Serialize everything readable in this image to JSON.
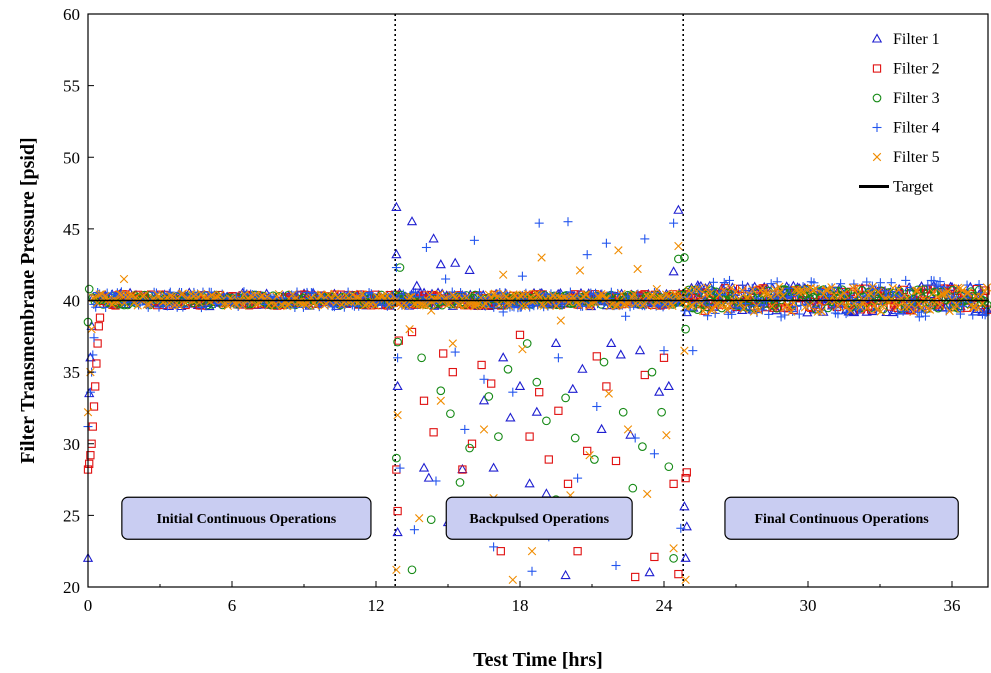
{
  "chart_data": {
    "type": "scatter",
    "title": "",
    "xlabel": "Test Time [hrs]",
    "ylabel": "Filter Transmembrane Pressure [psid]",
    "xlim": [
      0,
      37.5
    ],
    "ylim": [
      20,
      60
    ],
    "x_ticks": [
      "0",
      "6",
      "12",
      "18",
      "24",
      "30",
      "36"
    ],
    "x_tick_values": [
      0,
      6,
      12,
      18,
      24,
      30,
      36
    ],
    "y_ticks": [
      "20",
      "25",
      "30",
      "35",
      "40",
      "45",
      "50",
      "55",
      "60"
    ],
    "y_tick_values": [
      20,
      25,
      30,
      35,
      40,
      45,
      50,
      55,
      60
    ],
    "grid": false,
    "legend_position": "top-right",
    "phase_boundaries": [
      12.8,
      24.8
    ],
    "target": 40,
    "legend_target_label": "Target",
    "annotations": [
      {
        "text": "Initial Continuous Operations",
        "x": 6.6,
        "y": 24.8
      },
      {
        "text": "Backpulsed Operations",
        "x": 18.8,
        "y": 24.8
      },
      {
        "text": "Final Continuous Operations",
        "x": 31.4,
        "y": 24.8
      }
    ],
    "series": [
      {
        "name": "Filter 1",
        "marker": "triangle",
        "color": "#1f1fd0",
        "points": [
          [
            0.0,
            22.0
          ],
          [
            0.05,
            33.5
          ],
          [
            0.1,
            36.0
          ],
          [
            0.15,
            38.2
          ],
          [
            12.85,
            46.5
          ],
          [
            12.85,
            43.2
          ],
          [
            12.9,
            34.0
          ],
          [
            12.9,
            23.8
          ],
          [
            13.5,
            45.5
          ],
          [
            13.7,
            41.0
          ],
          [
            14.0,
            28.3
          ],
          [
            14.2,
            27.6
          ],
          [
            14.4,
            44.3
          ],
          [
            14.7,
            42.5
          ],
          [
            15.0,
            24.5
          ],
          [
            15.3,
            42.6
          ],
          [
            15.6,
            28.2
          ],
          [
            15.9,
            42.1
          ],
          [
            16.2,
            25.3
          ],
          [
            16.5,
            33.0
          ],
          [
            16.9,
            28.3
          ],
          [
            17.3,
            36.0
          ],
          [
            17.6,
            31.8
          ],
          [
            18.0,
            34.0
          ],
          [
            18.4,
            27.2
          ],
          [
            18.7,
            32.2
          ],
          [
            19.1,
            26.5
          ],
          [
            19.5,
            37.0
          ],
          [
            19.9,
            20.8
          ],
          [
            20.2,
            33.8
          ],
          [
            20.6,
            35.2
          ],
          [
            21.0,
            25.4
          ],
          [
            21.4,
            31.0
          ],
          [
            21.8,
            37.0
          ],
          [
            22.2,
            36.2
          ],
          [
            22.6,
            30.6
          ],
          [
            23.0,
            36.5
          ],
          [
            23.4,
            21.0
          ],
          [
            23.8,
            33.6
          ],
          [
            24.2,
            34.0
          ],
          [
            24.4,
            42.0
          ],
          [
            24.6,
            46.3
          ],
          [
            24.85,
            25.6
          ],
          [
            24.9,
            22.0
          ],
          [
            24.95,
            24.2
          ]
        ]
      },
      {
        "name": "Filter 2",
        "marker": "square",
        "color": "#e01010",
        "points": [
          [
            0.0,
            28.2
          ],
          [
            0.05,
            28.6
          ],
          [
            0.1,
            29.2
          ],
          [
            0.15,
            30.0
          ],
          [
            0.2,
            31.2
          ],
          [
            0.25,
            32.6
          ],
          [
            0.3,
            34.0
          ],
          [
            0.35,
            35.6
          ],
          [
            0.4,
            37.0
          ],
          [
            0.45,
            38.2
          ],
          [
            0.5,
            38.8
          ],
          [
            12.85,
            28.2
          ],
          [
            12.9,
            25.3
          ],
          [
            12.95,
            37.2
          ],
          [
            13.5,
            37.8
          ],
          [
            14.0,
            33.0
          ],
          [
            14.4,
            30.8
          ],
          [
            14.8,
            36.3
          ],
          [
            15.2,
            35.0
          ],
          [
            15.6,
            28.2
          ],
          [
            16.0,
            30.0
          ],
          [
            16.4,
            35.5
          ],
          [
            16.8,
            34.2
          ],
          [
            17.2,
            22.5
          ],
          [
            17.6,
            24.4
          ],
          [
            18.0,
            37.6
          ],
          [
            18.4,
            30.5
          ],
          [
            18.8,
            33.6
          ],
          [
            19.2,
            28.9
          ],
          [
            19.6,
            32.3
          ],
          [
            20.0,
            27.2
          ],
          [
            20.4,
            22.5
          ],
          [
            20.8,
            29.5
          ],
          [
            21.2,
            36.1
          ],
          [
            21.6,
            34.0
          ],
          [
            22.0,
            28.8
          ],
          [
            22.4,
            25.0
          ],
          [
            22.8,
            20.7
          ],
          [
            23.2,
            34.8
          ],
          [
            23.6,
            22.1
          ],
          [
            24.0,
            36.0
          ],
          [
            24.4,
            27.2
          ],
          [
            24.6,
            20.9
          ],
          [
            24.9,
            27.6
          ],
          [
            24.95,
            28.0
          ]
        ]
      },
      {
        "name": "Filter 3",
        "marker": "circle",
        "color": "#168a16",
        "points": [
          [
            0.0,
            38.5
          ],
          [
            0.05,
            40.8
          ],
          [
            12.85,
            29.0
          ],
          [
            12.9,
            37.1
          ],
          [
            13.0,
            42.3
          ],
          [
            13.5,
            21.2
          ],
          [
            13.9,
            36.0
          ],
          [
            14.3,
            24.7
          ],
          [
            14.7,
            33.7
          ],
          [
            15.1,
            32.1
          ],
          [
            15.5,
            27.3
          ],
          [
            15.9,
            29.7
          ],
          [
            16.3,
            25.1
          ],
          [
            16.7,
            33.3
          ],
          [
            17.1,
            30.5
          ],
          [
            17.5,
            35.2
          ],
          [
            17.9,
            25.0
          ],
          [
            18.3,
            37.0
          ],
          [
            18.7,
            34.3
          ],
          [
            19.1,
            31.6
          ],
          [
            19.5,
            26.1
          ],
          [
            19.9,
            33.2
          ],
          [
            20.3,
            30.4
          ],
          [
            20.7,
            24.6
          ],
          [
            21.1,
            28.9
          ],
          [
            21.5,
            35.7
          ],
          [
            21.9,
            23.8
          ],
          [
            22.3,
            32.2
          ],
          [
            22.7,
            26.9
          ],
          [
            23.1,
            29.8
          ],
          [
            23.5,
            35.0
          ],
          [
            23.9,
            32.2
          ],
          [
            24.2,
            28.4
          ],
          [
            24.4,
            22.0
          ],
          [
            24.6,
            42.9
          ],
          [
            24.85,
            43.0
          ],
          [
            24.9,
            38.0
          ]
        ]
      },
      {
        "name": "Filter 4",
        "marker": "plus",
        "color": "#2255ee",
        "points": [
          [
            0.0,
            31.2
          ],
          [
            0.1,
            33.6
          ],
          [
            0.15,
            35.0
          ],
          [
            0.2,
            36.2
          ],
          [
            0.25,
            37.4
          ],
          [
            12.85,
            42.3
          ],
          [
            12.9,
            36.0
          ],
          [
            13.0,
            28.3
          ],
          [
            13.6,
            24.0
          ],
          [
            14.1,
            43.7
          ],
          [
            14.5,
            27.4
          ],
          [
            14.9,
            41.5
          ],
          [
            15.3,
            36.4
          ],
          [
            15.7,
            31.0
          ],
          [
            16.1,
            44.2
          ],
          [
            16.5,
            34.5
          ],
          [
            16.9,
            22.8
          ],
          [
            17.3,
            39.2
          ],
          [
            17.7,
            33.6
          ],
          [
            18.1,
            41.7
          ],
          [
            18.5,
            21.1
          ],
          [
            18.8,
            45.4
          ],
          [
            19.2,
            23.5
          ],
          [
            19.6,
            36.0
          ],
          [
            20.0,
            45.5
          ],
          [
            20.4,
            27.6
          ],
          [
            20.8,
            43.2
          ],
          [
            21.2,
            32.6
          ],
          [
            21.6,
            44.0
          ],
          [
            22.0,
            21.5
          ],
          [
            22.4,
            38.9
          ],
          [
            22.8,
            30.4
          ],
          [
            23.2,
            44.3
          ],
          [
            23.6,
            29.3
          ],
          [
            24.0,
            36.5
          ],
          [
            24.4,
            45.4
          ],
          [
            24.7,
            24.1
          ],
          [
            25.2,
            36.5
          ]
        ]
      },
      {
        "name": "Filter 5",
        "marker": "x",
        "color": "#f08c00",
        "points": [
          [
            0.0,
            32.2
          ],
          [
            0.1,
            35.0
          ],
          [
            0.15,
            38.0
          ],
          [
            1.5,
            41.5
          ],
          [
            12.85,
            21.2
          ],
          [
            12.9,
            32.0
          ],
          [
            13.4,
            38.0
          ],
          [
            13.8,
            24.8
          ],
          [
            14.3,
            39.3
          ],
          [
            14.7,
            33.0
          ],
          [
            15.2,
            37.0
          ],
          [
            15.6,
            24.0
          ],
          [
            16.1,
            39.6
          ],
          [
            16.5,
            31.0
          ],
          [
            16.9,
            26.2
          ],
          [
            17.3,
            41.8
          ],
          [
            17.7,
            20.5
          ],
          [
            18.1,
            36.6
          ],
          [
            18.5,
            22.5
          ],
          [
            18.9,
            43.0
          ],
          [
            19.3,
            24.5
          ],
          [
            19.7,
            38.6
          ],
          [
            20.1,
            26.4
          ],
          [
            20.5,
            42.1
          ],
          [
            20.9,
            29.2
          ],
          [
            21.3,
            40.2
          ],
          [
            21.7,
            33.5
          ],
          [
            22.1,
            43.5
          ],
          [
            22.5,
            31.0
          ],
          [
            22.9,
            42.2
          ],
          [
            23.3,
            26.5
          ],
          [
            23.7,
            40.8
          ],
          [
            24.1,
            30.6
          ],
          [
            24.4,
            22.7
          ],
          [
            24.6,
            43.8
          ],
          [
            24.85,
            36.5
          ],
          [
            24.9,
            20.5
          ]
        ]
      }
    ]
  }
}
